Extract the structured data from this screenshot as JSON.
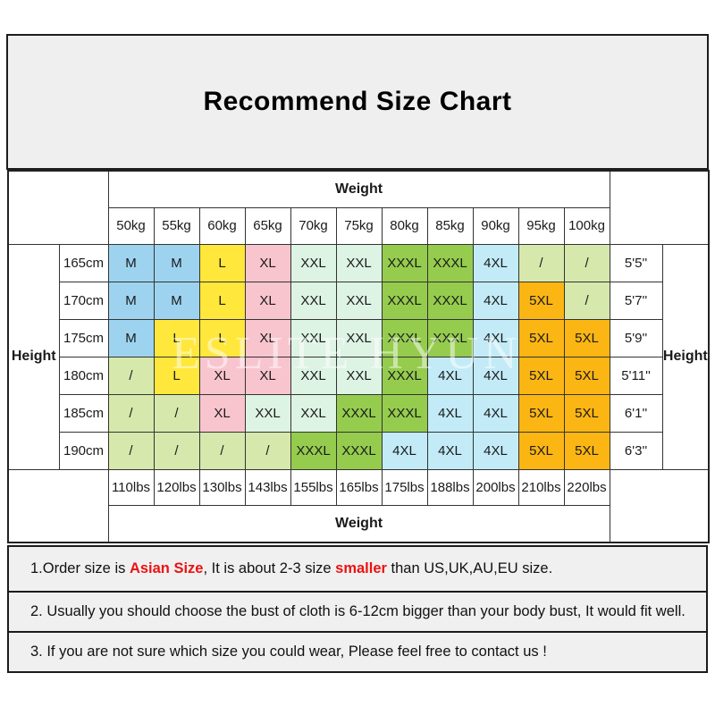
{
  "title": "Recommend Size Chart",
  "watermark": "ESLITE HYUN",
  "colors": {
    "banner_bg": "#efefef",
    "note_bg": "#f0f0f0",
    "border": "#333333",
    "accent_red": "#ed1111"
  },
  "chart_data": {
    "type": "table",
    "title": "Recommend Size Chart",
    "weight_axis_label_top": "Weight",
    "weight_axis_label_bottom": "Weight",
    "height_axis_label_left": "Height",
    "height_axis_label_right": "Height",
    "weights_kg": [
      "50kg",
      "55kg",
      "60kg",
      "65kg",
      "70kg",
      "75kg",
      "80kg",
      "85kg",
      "90kg",
      "95kg",
      "100kg"
    ],
    "weights_lbs": [
      "110lbs",
      "120lbs",
      "130lbs",
      "143lbs",
      "155lbs",
      "165lbs",
      "175lbs",
      "188lbs",
      "200lbs",
      "210lbs",
      "220lbs"
    ],
    "heights_cm": [
      "165cm",
      "170cm",
      "175cm",
      "180cm",
      "185cm",
      "190cm"
    ],
    "heights_ft": [
      "5'5''",
      "5'7''",
      "5'9''",
      "5'11''",
      "6'1''",
      "6'3''"
    ],
    "sizes": [
      [
        "M",
        "M",
        "L",
        "XL",
        "XXL",
        "XXL",
        "XXXL",
        "XXXL",
        "4XL",
        "/",
        "/"
      ],
      [
        "M",
        "M",
        "L",
        "XL",
        "XXL",
        "XXL",
        "XXXL",
        "XXXL",
        "4XL",
        "5XL",
        "/"
      ],
      [
        "M",
        "L",
        "L",
        "XL",
        "XXL",
        "XXL",
        "XXXL",
        "XXXL",
        "4XL",
        "5XL",
        "5XL"
      ],
      [
        "/",
        "L",
        "XL",
        "XL",
        "XXL",
        "XXL",
        "XXXL",
        "4XL",
        "4XL",
        "5XL",
        "5XL"
      ],
      [
        "/",
        "/",
        "XL",
        "XXL",
        "XXL",
        "XXXL",
        "XXXL",
        "4XL",
        "4XL",
        "5XL",
        "5XL"
      ],
      [
        "/",
        "/",
        "/",
        "/",
        "XXXL",
        "XXXL",
        "4XL",
        "4XL",
        "4XL",
        "5XL",
        "5XL"
      ]
    ],
    "cell_colors": {
      "M": "#9ed3f0",
      "L": "#ffe73c",
      "XL": "#f8c5cf",
      "XXL": "#ddf3e4",
      "XXXL": "#95cc4e",
      "4XL": "#c2ebf7",
      "5XL": "#fbb614",
      "/": "#d7e8ac"
    }
  },
  "notes": [
    {
      "parts": [
        {
          "text": "1.Order size is ",
          "red": false
        },
        {
          "text": "Asian Size",
          "red": true
        },
        {
          "text": ", It is about 2-3 size ",
          "red": false
        },
        {
          "text": "smaller",
          "red": true
        },
        {
          "text": " than US,UK,AU,EU size.",
          "red": false
        }
      ]
    },
    {
      "parts": [
        {
          "text": "2. Usually you should choose the bust of cloth is 6-12cm bigger than your body bust, It would fit well.",
          "red": false
        }
      ]
    },
    {
      "parts": [
        {
          "text": "3. If you are not sure which size you could wear, Please feel free to contact us !",
          "red": false
        }
      ]
    }
  ]
}
